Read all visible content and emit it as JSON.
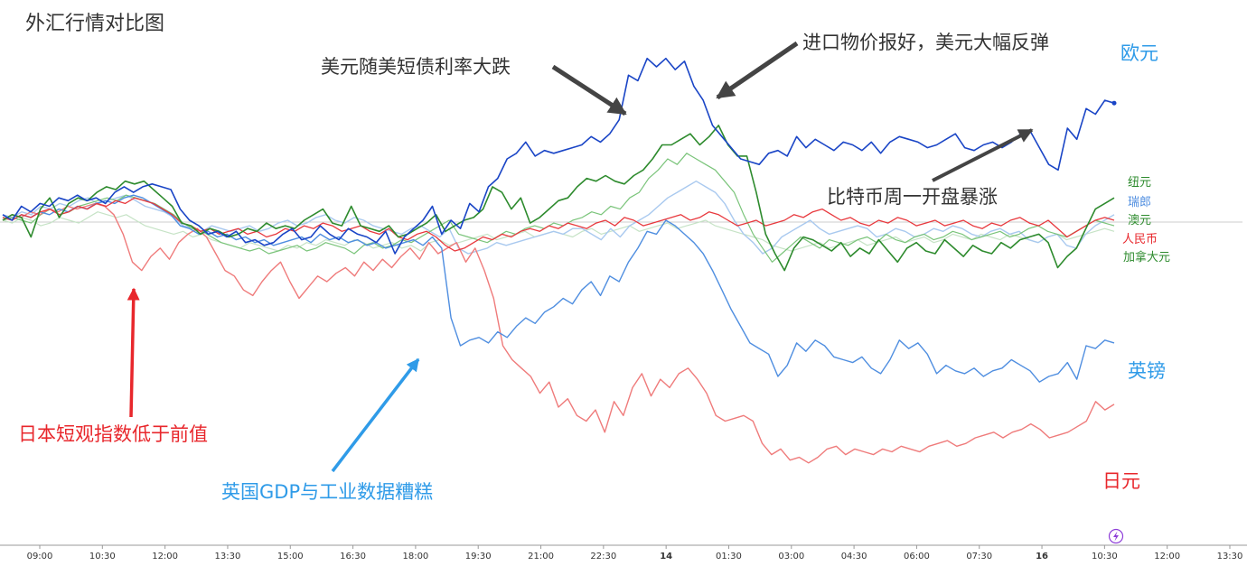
{
  "title": "外汇行情对比图",
  "chart_data": {
    "type": "line",
    "title": "外汇行情对比图",
    "xlabel": "",
    "ylabel": "",
    "grid": false,
    "x_ticks": [
      "09:00",
      "10:30",
      "12:00",
      "13:30",
      "15:00",
      "16:30",
      "18:00",
      "19:30",
      "21:00",
      "22:30",
      "14",
      "01:30",
      "03:00",
      "04:30",
      "06:00",
      "07:30",
      "16",
      "10:30",
      "12:00",
      "13:30"
    ],
    "bold_ticks": [
      "14",
      "16"
    ],
    "baseline": 0,
    "ylim": [
      -1.0,
      0.66
    ],
    "series": [
      {
        "name": "欧元",
        "color": "#1a45c6",
        "width": 1.6,
        "values": [
          0.02,
          0.0,
          0.05,
          0.03,
          0.06,
          0.05,
          0.08,
          0.07,
          0.09,
          0.07,
          0.08,
          0.06,
          0.1,
          0.12,
          0.1,
          0.12,
          0.13,
          0.12,
          0.11,
          0.04,
          0.0,
          -0.02,
          -0.05,
          -0.04,
          -0.06,
          -0.04,
          -0.08,
          -0.07,
          -0.09,
          -0.08,
          -0.05,
          -0.03,
          -0.07,
          -0.06,
          -0.02,
          -0.05,
          -0.07,
          -0.03,
          -0.05,
          -0.06,
          -0.08,
          -0.04,
          -0.12,
          -0.06,
          -0.03,
          0.0,
          0.05,
          -0.05,
          0.0,
          -0.03,
          0.06,
          0.03,
          0.12,
          0.15,
          0.22,
          0.24,
          0.28,
          0.23,
          0.25,
          0.24,
          0.25,
          0.26,
          0.27,
          0.3,
          0.28,
          0.31,
          0.36,
          0.52,
          0.5,
          0.58,
          0.55,
          0.58,
          0.54,
          0.57,
          0.48,
          0.43,
          0.34,
          0.3,
          0.26,
          0.22,
          0.21,
          0.2,
          0.24,
          0.25,
          0.23,
          0.3,
          0.26,
          0.29,
          0.27,
          0.25,
          0.28,
          0.27,
          0.25,
          0.28,
          0.24,
          0.28,
          0.3,
          0.29,
          0.28,
          0.26,
          0.27,
          0.29,
          0.31,
          0.26,
          0.25,
          0.27,
          0.28,
          0.26,
          0.28,
          0.31,
          0.32,
          0.26,
          0.2,
          0.18,
          0.33,
          0.29,
          0.4,
          0.38,
          0.43,
          0.42
        ]
      },
      {
        "name": "纽元",
        "color": "#2e8b2e",
        "width": 1.6,
        "values": [
          0.0,
          0.02,
          0.01,
          -0.06,
          0.04,
          0.08,
          0.01,
          0.06,
          0.08,
          0.07,
          0.1,
          0.12,
          0.11,
          0.14,
          0.13,
          0.14,
          0.11,
          0.08,
          0.05,
          -0.01,
          -0.02,
          -0.05,
          -0.03,
          -0.04,
          -0.06,
          -0.05,
          -0.03,
          -0.04,
          -0.01,
          -0.03,
          -0.02,
          -0.03,
          0.0,
          0.02,
          0.04,
          -0.01,
          -0.02,
          0.05,
          -0.02,
          -0.03,
          -0.04,
          -0.02,
          -0.06,
          -0.05,
          -0.03,
          -0.01,
          0.02,
          -0.04,
          -0.02,
          0.0,
          0.01,
          0.04,
          0.12,
          0.1,
          0.04,
          0.08,
          -0.01,
          0.01,
          0.04,
          0.07,
          0.08,
          0.12,
          0.15,
          0.14,
          0.16,
          0.14,
          0.13,
          0.16,
          0.18,
          0.22,
          0.27,
          0.27,
          0.29,
          0.31,
          0.27,
          0.3,
          0.34,
          0.27,
          0.23,
          0.23,
          0.1,
          -0.05,
          -0.12,
          -0.18,
          -0.1,
          -0.06,
          -0.07,
          -0.09,
          -0.11,
          -0.08,
          -0.13,
          -0.1,
          -0.12,
          -0.07,
          -0.11,
          -0.15,
          -0.1,
          -0.08,
          -0.11,
          -0.12,
          -0.07,
          -0.1,
          -0.13,
          -0.09,
          -0.11,
          -0.12,
          -0.08,
          -0.1,
          -0.07,
          -0.06,
          -0.05,
          -0.08,
          -0.17,
          -0.13,
          -0.1,
          -0.03,
          0.04,
          0.06,
          0.08
        ]
      },
      {
        "name": "瑞郎",
        "color": "#a9c9ef",
        "width": 1.4,
        "values": [
          0.02,
          0.01,
          0.03,
          0.02,
          0.05,
          0.04,
          0.06,
          0.05,
          0.07,
          0.08,
          0.06,
          0.07,
          0.08,
          0.09,
          0.07,
          0.05,
          0.04,
          0.03,
          0.01,
          -0.02,
          -0.03,
          -0.04,
          -0.02,
          -0.03,
          -0.04,
          -0.03,
          -0.02,
          -0.04,
          -0.03,
          -0.01,
          0.0,
          -0.02,
          -0.01,
          0.01,
          0.02,
          0.0,
          -0.01,
          0.01,
          0.0,
          -0.02,
          -0.03,
          -0.04,
          -0.05,
          -0.03,
          -0.02,
          -0.04,
          -0.06,
          -0.03,
          -0.1,
          -0.12,
          -0.11,
          -0.1,
          -0.08,
          -0.09,
          -0.08,
          -0.07,
          -0.06,
          -0.05,
          -0.04,
          -0.05,
          -0.03,
          -0.03,
          -0.05,
          -0.07,
          -0.03,
          -0.06,
          -0.02,
          0.0,
          0.02,
          0.05,
          0.08,
          0.1,
          0.12,
          0.14,
          0.12,
          0.1,
          0.06,
          0.0,
          -0.05,
          -0.08,
          -0.12,
          -0.1,
          -0.06,
          -0.04,
          -0.02,
          0.0,
          -0.03,
          -0.05,
          -0.04,
          -0.03,
          -0.02,
          -0.03,
          -0.06,
          -0.05,
          -0.03,
          -0.04,
          -0.06,
          -0.05,
          -0.03,
          -0.04,
          -0.02,
          -0.03,
          -0.05,
          -0.06,
          -0.04,
          -0.03,
          -0.05,
          -0.04,
          -0.07,
          -0.08,
          -0.06,
          -0.05,
          -0.09,
          -0.1,
          -0.05,
          -0.02,
          0.0,
          0.02
        ]
      },
      {
        "name": "澳元",
        "color": "#7ac47a",
        "width": 1.2,
        "values": [
          0.0,
          0.01,
          0.0,
          -0.01,
          0.02,
          0.04,
          0.02,
          0.03,
          0.05,
          0.06,
          0.07,
          0.08,
          0.07,
          0.09,
          0.08,
          0.07,
          0.06,
          0.04,
          0.02,
          -0.01,
          -0.03,
          -0.04,
          -0.06,
          -0.08,
          -0.09,
          -0.1,
          -0.11,
          -0.1,
          -0.12,
          -0.11,
          -0.1,
          -0.09,
          -0.11,
          -0.1,
          -0.08,
          -0.09,
          -0.1,
          -0.12,
          -0.09,
          -0.08,
          -0.1,
          -0.09,
          -0.07,
          -0.08,
          -0.06,
          -0.04,
          -0.02,
          0.0,
          -0.05,
          -0.06,
          -0.07,
          -0.08,
          -0.06,
          -0.04,
          -0.05,
          -0.03,
          -0.02,
          -0.03,
          -0.01,
          -0.02,
          0.0,
          0.01,
          0.03,
          0.02,
          0.05,
          0.04,
          0.08,
          0.1,
          0.15,
          0.18,
          0.22,
          0.2,
          0.24,
          0.22,
          0.2,
          0.18,
          0.14,
          0.1,
          0.02,
          -0.05,
          -0.1,
          -0.15,
          -0.12,
          -0.09,
          -0.06,
          -0.08,
          -0.1,
          -0.07,
          -0.08,
          -0.09,
          -0.07,
          -0.06,
          -0.08,
          -0.05,
          -0.07,
          -0.08,
          -0.06,
          -0.05,
          -0.07,
          -0.06,
          -0.04,
          -0.05,
          -0.07,
          -0.06,
          -0.05,
          -0.04,
          -0.06,
          -0.05,
          -0.03,
          -0.02,
          -0.04,
          -0.05,
          -0.06,
          -0.04,
          -0.02,
          0.0,
          -0.01,
          -0.02
        ]
      },
      {
        "name": "人民币",
        "color": "#e8383d",
        "width": 1.3,
        "values": [
          0.01,
          0.0,
          0.02,
          0.01,
          0.03,
          0.04,
          0.02,
          0.03,
          0.05,
          0.04,
          0.06,
          0.05,
          0.07,
          0.06,
          0.08,
          0.07,
          0.06,
          0.04,
          0.02,
          -0.01,
          -0.02,
          -0.04,
          -0.03,
          -0.05,
          -0.04,
          -0.03,
          -0.05,
          -0.04,
          -0.06,
          -0.05,
          -0.03,
          -0.04,
          -0.02,
          -0.03,
          -0.01,
          -0.02,
          -0.04,
          -0.03,
          -0.02,
          -0.04,
          -0.05,
          -0.03,
          -0.06,
          -0.07,
          -0.05,
          -0.04,
          -0.06,
          -0.09,
          -0.11,
          -0.1,
          -0.08,
          -0.06,
          -0.07,
          -0.05,
          -0.06,
          -0.04,
          -0.03,
          -0.04,
          -0.02,
          -0.03,
          -0.01,
          -0.02,
          -0.03,
          -0.01,
          0.0,
          -0.02,
          0.01,
          0.0,
          -0.02,
          -0.01,
          0.0,
          0.01,
          0.02,
          0.0,
          0.01,
          0.03,
          0.02,
          0.0,
          -0.02,
          -0.01,
          0.0,
          -0.02,
          -0.01,
          0.0,
          0.02,
          0.01,
          0.03,
          0.04,
          0.02,
          0.0,
          0.01,
          -0.01,
          -0.02,
          0.0,
          -0.01,
          0.01,
          0.0,
          -0.02,
          -0.01,
          0.0,
          -0.02,
          -0.01,
          0.0,
          -0.02,
          -0.03,
          -0.01,
          -0.02,
          0.0,
          0.01,
          -0.01,
          -0.02,
          0.0,
          -0.03,
          -0.06,
          -0.04,
          -0.02,
          0.0,
          0.01,
          0.0
        ]
      },
      {
        "name": "加拿大元",
        "color": "#c6e3c6",
        "width": 1.2,
        "values": [
          0.0,
          -0.01,
          0.01,
          0.0,
          -0.02,
          -0.01,
          0.01,
          0.0,
          -0.01,
          0.01,
          0.03,
          0.02,
          0.01,
          0.02,
          0.0,
          -0.02,
          -0.03,
          -0.04,
          -0.05,
          -0.04,
          -0.06,
          -0.05,
          -0.07,
          -0.08,
          -0.09,
          -0.1,
          -0.08,
          -0.09,
          -0.1,
          -0.11,
          -0.09,
          -0.1,
          -0.08,
          -0.09,
          -0.07,
          -0.08,
          -0.09,
          -0.07,
          -0.08,
          -0.1,
          -0.09,
          -0.08,
          -0.1,
          -0.09,
          -0.11,
          -0.08,
          -0.07,
          -0.09,
          -0.08,
          -0.07,
          -0.06,
          -0.05,
          -0.07,
          -0.06,
          -0.05,
          -0.04,
          -0.06,
          -0.05,
          -0.04,
          -0.05,
          -0.06,
          -0.04,
          -0.03,
          -0.05,
          -0.04,
          -0.03,
          -0.02,
          -0.04,
          -0.03,
          -0.02,
          -0.01,
          -0.03,
          -0.02,
          -0.01,
          0.0,
          -0.02,
          -0.03,
          -0.04,
          -0.05,
          -0.06,
          -0.07,
          -0.09,
          -0.1,
          -0.11,
          -0.1,
          -0.09,
          -0.08,
          -0.1,
          -0.09,
          -0.08,
          -0.07,
          -0.09,
          -0.08,
          -0.07,
          -0.06,
          -0.08,
          -0.07,
          -0.06,
          -0.08,
          -0.07,
          -0.05,
          -0.06,
          -0.07,
          -0.05,
          -0.06,
          -0.07,
          -0.05,
          -0.06,
          -0.07,
          -0.08,
          -0.06,
          -0.05,
          -0.07,
          -0.06,
          -0.05,
          -0.04,
          -0.03,
          -0.04
        ]
      },
      {
        "name": "英镑",
        "color": "#4f8ee0",
        "width": 1.4,
        "values": [
          0.01,
          0.0,
          0.02,
          0.01,
          0.03,
          0.02,
          0.04,
          0.03,
          0.05,
          0.04,
          0.06,
          0.07,
          0.06,
          0.08,
          0.09,
          0.08,
          0.06,
          0.04,
          0.02,
          -0.02,
          -0.03,
          -0.05,
          -0.04,
          -0.06,
          -0.05,
          -0.07,
          -0.06,
          -0.08,
          -0.07,
          -0.09,
          -0.08,
          -0.07,
          -0.06,
          -0.08,
          -0.05,
          -0.07,
          -0.06,
          -0.08,
          -0.07,
          -0.09,
          -0.08,
          -0.1,
          -0.09,
          -0.08,
          -0.07,
          -0.09,
          -0.06,
          -0.1,
          -0.35,
          -0.45,
          -0.43,
          -0.42,
          -0.44,
          -0.4,
          -0.42,
          -0.38,
          -0.35,
          -0.37,
          -0.33,
          -0.31,
          -0.28,
          -0.3,
          -0.25,
          -0.22,
          -0.27,
          -0.2,
          -0.22,
          -0.15,
          -0.1,
          -0.04,
          -0.05,
          0.0,
          -0.02,
          -0.05,
          -0.08,
          -0.12,
          -0.18,
          -0.25,
          -0.32,
          -0.38,
          -0.44,
          -0.46,
          -0.48,
          -0.56,
          -0.52,
          -0.44,
          -0.47,
          -0.43,
          -0.45,
          -0.49,
          -0.5,
          -0.51,
          -0.49,
          -0.53,
          -0.55,
          -0.5,
          -0.43,
          -0.46,
          -0.44,
          -0.48,
          -0.55,
          -0.52,
          -0.54,
          -0.55,
          -0.53,
          -0.56,
          -0.54,
          -0.53,
          -0.5,
          -0.52,
          -0.54,
          -0.58,
          -0.56,
          -0.55,
          -0.51,
          -0.57,
          -0.45,
          -0.46,
          -0.43,
          -0.44
        ]
      },
      {
        "name": "日元",
        "color": "#ef7b7b",
        "width": 1.4,
        "values": [
          0.0,
          0.02,
          0.01,
          0.03,
          0.02,
          0.04,
          0.03,
          0.05,
          0.04,
          0.05,
          0.06,
          0.05,
          0.02,
          -0.05,
          -0.15,
          -0.18,
          -0.13,
          -0.1,
          -0.14,
          -0.08,
          -0.05,
          -0.03,
          -0.06,
          -0.12,
          -0.18,
          -0.2,
          -0.25,
          -0.27,
          -0.22,
          -0.18,
          -0.15,
          -0.22,
          -0.28,
          -0.24,
          -0.2,
          -0.22,
          -0.19,
          -0.17,
          -0.2,
          -0.15,
          -0.18,
          -0.14,
          -0.17,
          -0.13,
          -0.1,
          -0.14,
          -0.08,
          -0.12,
          -0.1,
          -0.08,
          -0.15,
          -0.1,
          -0.18,
          -0.28,
          -0.45,
          -0.5,
          -0.53,
          -0.56,
          -0.62,
          -0.58,
          -0.67,
          -0.64,
          -0.7,
          -0.72,
          -0.68,
          -0.76,
          -0.65,
          -0.7,
          -0.6,
          -0.55,
          -0.63,
          -0.57,
          -0.6,
          -0.55,
          -0.53,
          -0.57,
          -0.62,
          -0.7,
          -0.72,
          -0.71,
          -0.7,
          -0.72,
          -0.8,
          -0.84,
          -0.82,
          -0.86,
          -0.85,
          -0.87,
          -0.85,
          -0.82,
          -0.81,
          -0.84,
          -0.82,
          -0.83,
          -0.84,
          -0.82,
          -0.83,
          -0.81,
          -0.82,
          -0.83,
          -0.81,
          -0.8,
          -0.79,
          -0.81,
          -0.8,
          -0.78,
          -0.77,
          -0.76,
          -0.78,
          -0.76,
          -0.75,
          -0.73,
          -0.75,
          -0.78,
          -0.77,
          -0.76,
          -0.74,
          -0.72,
          -0.65,
          -0.68,
          -0.66
        ]
      }
    ],
    "annotations": [
      {
        "text": "美元随美短债利率大跌",
        "color": "#333333"
      },
      {
        "text": "进口物价报好，美元大幅反弹",
        "color": "#333333"
      },
      {
        "text": "比特币周一开盘暴涨",
        "color": "#333333"
      },
      {
        "text": "日本短观指数低于前值",
        "color": "#e8272c"
      },
      {
        "text": "英国GDP与工业数据糟糕",
        "color": "#2f9be8"
      }
    ]
  },
  "icons": {
    "bolt": "lightning-bolt-icon",
    "bolt_color": "#8e3fd8"
  }
}
